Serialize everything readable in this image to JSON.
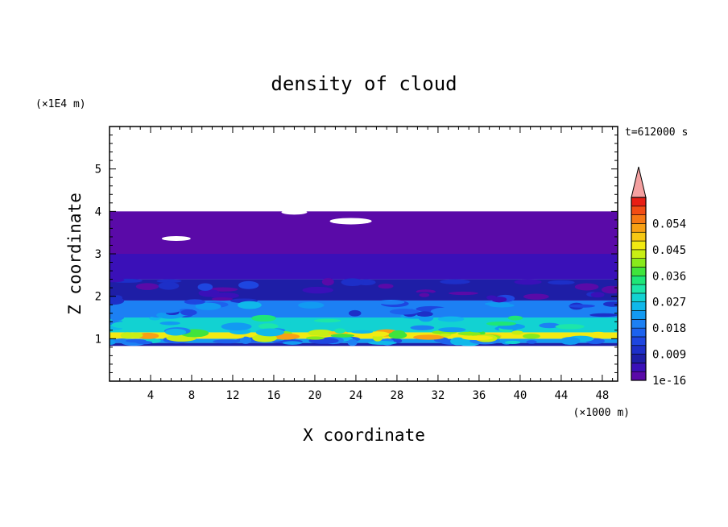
{
  "chart_data": {
    "type": "heatmap",
    "title": "density of cloud",
    "time_label": "t=612000 s",
    "xlabel": "X coordinate",
    "ylabel": "Z coordinate",
    "x_unit": "(×1000 m)",
    "y_unit": "(×1E4 m)",
    "xlim": [
      0,
      49.5
    ],
    "ylim": [
      0,
      6
    ],
    "x_ticks": [
      "4",
      "8",
      "12",
      "16",
      "20",
      "24",
      "28",
      "32",
      "36",
      "40",
      "44",
      "48"
    ],
    "y_ticks": [
      "1",
      "2",
      "3",
      "4",
      "5"
    ],
    "colorbar": {
      "labels": [
        "1e-16",
        "0.009",
        "0.018",
        "0.027",
        "0.036",
        "0.045",
        "0.054"
      ],
      "levels": [
        1e-16,
        0.003,
        0.006,
        0.009,
        0.012,
        0.015,
        0.018,
        0.021,
        0.024,
        0.027,
        0.03,
        0.033,
        0.036,
        0.039,
        0.042,
        0.045,
        0.048,
        0.051,
        0.054,
        0.057,
        0.06
      ],
      "colors": [
        "#5a0aa8",
        "#3a10b8",
        "#1e1ea6",
        "#1d2fc8",
        "#1e46e0",
        "#1c62ee",
        "#1c80f4",
        "#129af2",
        "#10b8ea",
        "#12d2d2",
        "#1ce6aa",
        "#1ee678",
        "#40e43c",
        "#88ea1c",
        "#c8ee14",
        "#f2ea12",
        "#f6c814",
        "#f8a014",
        "#f67814",
        "#f24c14",
        "#e81e14"
      ],
      "extend_color": "#f4a0a0"
    },
    "layers": [
      {
        "z_min": 0.83,
        "z_max": 0.9,
        "density": 0.006
      },
      {
        "z_min": 0.9,
        "z_max": 1.0,
        "density": 0.021
      },
      {
        "z_min": 1.0,
        "z_max": 1.15,
        "density": 0.045
      },
      {
        "z_min": 1.15,
        "z_max": 1.5,
        "density": 0.027
      },
      {
        "z_min": 1.5,
        "z_max": 1.9,
        "density": 0.018
      },
      {
        "z_min": 1.9,
        "z_max": 2.4,
        "density": 0.006
      },
      {
        "z_min": 2.4,
        "z_max": 3.0,
        "density": 0.003
      },
      {
        "z_min": 3.0,
        "z_max": 4.0,
        "density": 1e-16
      }
    ]
  }
}
